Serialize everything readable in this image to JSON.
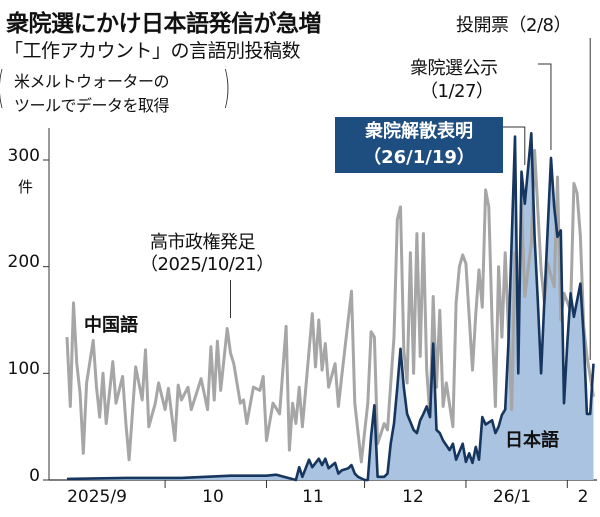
{
  "title": "衆院選にかけ日本語発信が急増",
  "subtitle": "「工作アカウント」の言語別投稿数",
  "note": [
    "米メルトウォーターの",
    "ツールでデータを取得"
  ],
  "annotations": {
    "takaichi": [
      "高市政権発足",
      "（2025/10/21）"
    ],
    "dissolution": [
      "衆院解散表明",
      "（26/1/19）"
    ],
    "announcement": [
      "衆院選公示",
      "（1/27）"
    ],
    "voting": "投開票（2/8）"
  },
  "colors": {
    "chinese": "#a6a6a6",
    "japanese_line": "#17365f",
    "japanese_fill": "#a9c3e0",
    "box": "#1e4d80"
  },
  "chart_data": {
    "type": "line",
    "title": "衆院選にかけ日本語発信が急増",
    "xlabel": "",
    "ylabel": "件",
    "ylim": [
      0,
      330
    ],
    "x_unit": "days since 2025/9/1",
    "xlim": [
      0,
      161
    ],
    "y_ticks": [
      "0",
      "100",
      "200",
      "300"
    ],
    "y_tick_values": [
      0,
      100,
      200,
      300
    ],
    "x_ticks": [
      {
        "label": "2025/9",
        "center": 15
      },
      {
        "label": "10",
        "center": 45.5
      },
      {
        "label": "11",
        "center": 76
      },
      {
        "label": "12",
        "center": 106.5
      },
      {
        "label": "26/1",
        "center": 137
      },
      {
        "label": "2",
        "center": 157
      }
    ],
    "month_boundaries": [
      30,
      61,
      91,
      122,
      153
    ],
    "event_days": {
      "takaichi": 50,
      "dissolution": 140,
      "announcement": 148,
      "voting": 160
    },
    "series": [
      {
        "name": "中国語",
        "points": [
          [
            0,
            134
          ],
          [
            1,
            69
          ],
          [
            2,
            166
          ],
          [
            3,
            109
          ],
          [
            4,
            81
          ],
          [
            5,
            25
          ],
          [
            6,
            91
          ],
          [
            8,
            131
          ],
          [
            9,
            88
          ],
          [
            10,
            59
          ],
          [
            11,
            100
          ],
          [
            12,
            53
          ],
          [
            14,
            111
          ],
          [
            15,
            72
          ],
          [
            17,
            97
          ],
          [
            18,
            53
          ],
          [
            19,
            19
          ],
          [
            21,
            106
          ],
          [
            23,
            75
          ],
          [
            24,
            122
          ],
          [
            25,
            50
          ],
          [
            27,
            72
          ],
          [
            28,
            91
          ],
          [
            30,
            66
          ],
          [
            31,
            86
          ],
          [
            33,
            37
          ],
          [
            34,
            89
          ],
          [
            35,
            75
          ],
          [
            37,
            87
          ],
          [
            38,
            66
          ],
          [
            41,
            95
          ],
          [
            43,
            66
          ],
          [
            44,
            125
          ],
          [
            45,
            75
          ],
          [
            46,
            130
          ],
          [
            47,
            84
          ],
          [
            49,
            142
          ],
          [
            50,
            119
          ],
          [
            51,
            109
          ],
          [
            53,
            72
          ],
          [
            54,
            75
          ],
          [
            55,
            53
          ],
          [
            57,
            87
          ],
          [
            59,
            84
          ],
          [
            60,
            97
          ],
          [
            61,
            37
          ],
          [
            63,
            72
          ],
          [
            65,
            62
          ],
          [
            67,
            144
          ],
          [
            68,
            28
          ],
          [
            69,
            72
          ],
          [
            70,
            53
          ],
          [
            71,
            87
          ],
          [
            72,
            50
          ],
          [
            75,
            156
          ],
          [
            76,
            106
          ],
          [
            77,
            150
          ],
          [
            78,
            103
          ],
          [
            79,
            128
          ],
          [
            80,
            87
          ],
          [
            82,
            109
          ],
          [
            83,
            69
          ],
          [
            84,
            97
          ],
          [
            87,
            177
          ],
          [
            88,
            72
          ],
          [
            90,
            17
          ],
          [
            92,
            72
          ],
          [
            93,
            139
          ],
          [
            94,
            134
          ],
          [
            95,
            34
          ],
          [
            97,
            53
          ],
          [
            98,
            47
          ],
          [
            100,
            134
          ],
          [
            101,
            244
          ],
          [
            102,
            256
          ],
          [
            103,
            122
          ],
          [
            104,
            91
          ],
          [
            105,
            213
          ],
          [
            106,
            100
          ],
          [
            107,
            231
          ],
          [
            108,
            116
          ],
          [
            109,
            231
          ],
          [
            110,
            103
          ],
          [
            111,
            59
          ],
          [
            112,
            172
          ],
          [
            113,
            87
          ],
          [
            114,
            159
          ],
          [
            115,
            69
          ],
          [
            116,
            91
          ],
          [
            118,
            50
          ],
          [
            119,
            166
          ],
          [
            120,
            200
          ],
          [
            121,
            211
          ],
          [
            122,
            203
          ],
          [
            124,
            103
          ],
          [
            125,
            156
          ],
          [
            126,
            197
          ],
          [
            127,
            162
          ],
          [
            128,
            272
          ],
          [
            129,
            256
          ],
          [
            130,
            147
          ],
          [
            131,
            69
          ],
          [
            132,
            200
          ],
          [
            133,
            134
          ],
          [
            134,
            213
          ],
          [
            136,
            66
          ],
          [
            137,
            213
          ],
          [
            138,
            134
          ],
          [
            139,
            259
          ],
          [
            140,
            172
          ],
          [
            142,
            222
          ],
          [
            143,
            309
          ],
          [
            145,
            197
          ],
          [
            146,
            166
          ],
          [
            147,
            203
          ],
          [
            149,
            181
          ],
          [
            150,
            284
          ],
          [
            151,
            150
          ],
          [
            152,
            175
          ],
          [
            154,
            159
          ],
          [
            155,
            278
          ],
          [
            156,
            269
          ],
          [
            157,
            228
          ],
          [
            158,
            144
          ],
          [
            159,
            116
          ],
          [
            161,
            78
          ]
        ]
      },
      {
        "name": "日本語",
        "points": [
          [
            0,
            1
          ],
          [
            18,
            2
          ],
          [
            35,
            2
          ],
          [
            50,
            4
          ],
          [
            61,
            4
          ],
          [
            64,
            5
          ],
          [
            70,
            0
          ],
          [
            71,
            12
          ],
          [
            72,
            3
          ],
          [
            74,
            19
          ],
          [
            75,
            12
          ],
          [
            77,
            20
          ],
          [
            78,
            14
          ],
          [
            79,
            20
          ],
          [
            80,
            11
          ],
          [
            82,
            16
          ],
          [
            83,
            6
          ],
          [
            84,
            9
          ],
          [
            86,
            11
          ],
          [
            87,
            14
          ],
          [
            88,
            6
          ],
          [
            89,
            3
          ],
          [
            91,
            0
          ],
          [
            92,
            0
          ],
          [
            93,
            41
          ],
          [
            94,
            70
          ],
          [
            95,
            3
          ],
          [
            97,
            3
          ],
          [
            98,
            6
          ],
          [
            99,
            34
          ],
          [
            100,
            53
          ],
          [
            101,
            87
          ],
          [
            102,
            123
          ],
          [
            103,
            87
          ],
          [
            104,
            62
          ],
          [
            106,
            47
          ],
          [
            107,
            44
          ],
          [
            108,
            56
          ],
          [
            109,
            62
          ],
          [
            110,
            69
          ],
          [
            111,
            59
          ],
          [
            112,
            128
          ],
          [
            113,
            47
          ],
          [
            114,
            44
          ],
          [
            115,
            37
          ],
          [
            117,
            28
          ],
          [
            118,
            34
          ],
          [
            119,
            19
          ],
          [
            121,
            34
          ],
          [
            122,
            17
          ],
          [
            123,
            25
          ],
          [
            124,
            16
          ],
          [
            125,
            31
          ],
          [
            126,
            19
          ],
          [
            127,
            59
          ],
          [
            128,
            52
          ],
          [
            130,
            56
          ],
          [
            131,
            44
          ],
          [
            132,
            50
          ],
          [
            133,
            61
          ],
          [
            134,
            66
          ],
          [
            135,
            128
          ],
          [
            137,
            322
          ],
          [
            138,
            100
          ],
          [
            139,
            289
          ],
          [
            140,
            259
          ],
          [
            142,
            325
          ],
          [
            143,
            228
          ],
          [
            144,
            166
          ],
          [
            145,
            100
          ],
          [
            146,
            169
          ],
          [
            148,
            302
          ],
          [
            149,
            256
          ],
          [
            150,
            228
          ],
          [
            151,
            234
          ],
          [
            152,
            72
          ],
          [
            153,
            128
          ],
          [
            154,
            175
          ],
          [
            155,
            153
          ],
          [
            157,
            184
          ],
          [
            158,
            134
          ],
          [
            159,
            62
          ],
          [
            160,
            62
          ],
          [
            161,
            109
          ]
        ]
      }
    ]
  }
}
